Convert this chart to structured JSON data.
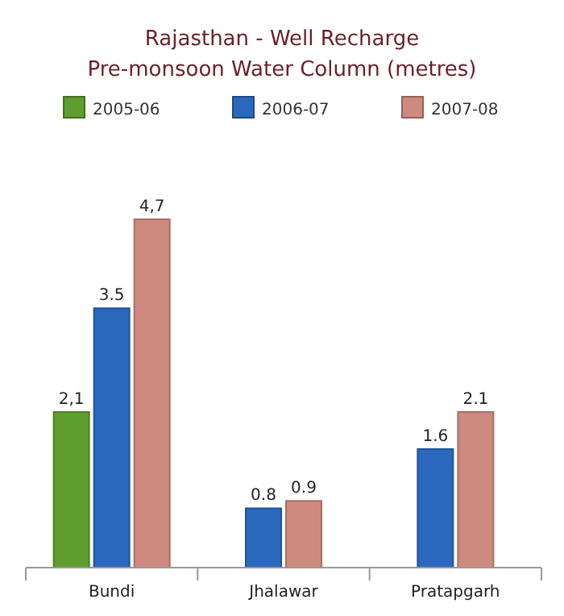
{
  "chart_data": {
    "type": "bar",
    "title": "Rajasthan - Well Recharge\nPre-monsoon Water Column (metres)",
    "categories": [
      "Bundi",
      "Jhalawar",
      "Pratapgarh"
    ],
    "series": [
      {
        "name": "2005-06",
        "color": "#5f9e2e",
        "values": [
          2.1,
          null,
          null
        ],
        "value_labels": [
          "2,1",
          null,
          null
        ]
      },
      {
        "name": "2006-07",
        "color": "#2a68bd",
        "values": [
          3.5,
          0.8,
          1.6
        ],
        "value_labels": [
          "3.5",
          "0.8",
          "1.6"
        ]
      },
      {
        "name": "2007-08",
        "color": "#cf8a80",
        "values": [
          4.7,
          0.9,
          2.1
        ],
        "value_labels": [
          "4,7",
          "0.9",
          "2.1"
        ]
      }
    ],
    "legend": "top",
    "grid": false
  }
}
